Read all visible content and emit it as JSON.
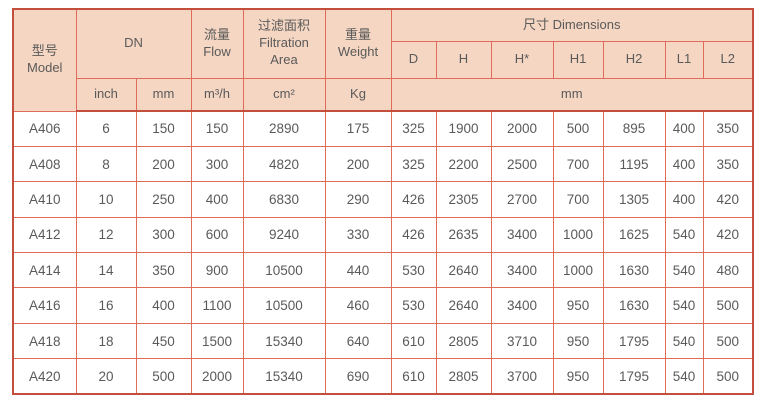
{
  "colors": {
    "header_bg": "#f4d6c2",
    "inner_border": "#e06b5b",
    "outer_border": "#c44f3d",
    "text": "#5a5a5a"
  },
  "table": {
    "header": {
      "model": "型号\nModel",
      "dn": "DN",
      "flow": "流量\nFlow",
      "filtration_area": "过滤面积\nFiltration\nArea",
      "weight": "重量\nWeight",
      "dimensions": "尺寸 Dimensions",
      "dim_columns": [
        "D",
        "H",
        "H*",
        "H1",
        "H2",
        "L1",
        "L2"
      ],
      "unit_inch": "inch",
      "unit_mm": "mm",
      "unit_flow": "m³/h",
      "unit_area": "cm²",
      "unit_weight": "Kg",
      "unit_dimensions": "mm"
    },
    "rows": [
      {
        "model": "A406",
        "inch": "6",
        "mm": "150",
        "flow": "150",
        "area": "2890",
        "weight": "175",
        "dims": [
          "325",
          "1900",
          "2000",
          "500",
          "895",
          "400",
          "350"
        ]
      },
      {
        "model": "A408",
        "inch": "8",
        "mm": "200",
        "flow": "300",
        "area": "4820",
        "weight": "200",
        "dims": [
          "325",
          "2200",
          "2500",
          "700",
          "1195",
          "400",
          "350"
        ]
      },
      {
        "model": "A410",
        "inch": "10",
        "mm": "250",
        "flow": "400",
        "area": "6830",
        "weight": "290",
        "dims": [
          "426",
          "2305",
          "2700",
          "700",
          "1305",
          "400",
          "420"
        ]
      },
      {
        "model": "A412",
        "inch": "12",
        "mm": "300",
        "flow": "600",
        "area": "9240",
        "weight": "330",
        "dims": [
          "426",
          "2635",
          "3400",
          "1000",
          "1625",
          "540",
          "420"
        ]
      },
      {
        "model": "A414",
        "inch": "14",
        "mm": "350",
        "flow": "900",
        "area": "10500",
        "weight": "440",
        "dims": [
          "530",
          "2640",
          "3400",
          "1000",
          "1630",
          "540",
          "480"
        ]
      },
      {
        "model": "A416",
        "inch": "16",
        "mm": "400",
        "flow": "1100",
        "area": "10500",
        "weight": "460",
        "dims": [
          "530",
          "2640",
          "3400",
          "950",
          "1630",
          "540",
          "500"
        ]
      },
      {
        "model": "A418",
        "inch": "18",
        "mm": "450",
        "flow": "1500",
        "area": "15340",
        "weight": "640",
        "dims": [
          "610",
          "2805",
          "3710",
          "950",
          "1795",
          "540",
          "500"
        ]
      },
      {
        "model": "A420",
        "inch": "20",
        "mm": "500",
        "flow": "2000",
        "area": "15340",
        "weight": "690",
        "dims": [
          "610",
          "2805",
          "3700",
          "950",
          "1795",
          "540",
          "500"
        ]
      }
    ]
  }
}
